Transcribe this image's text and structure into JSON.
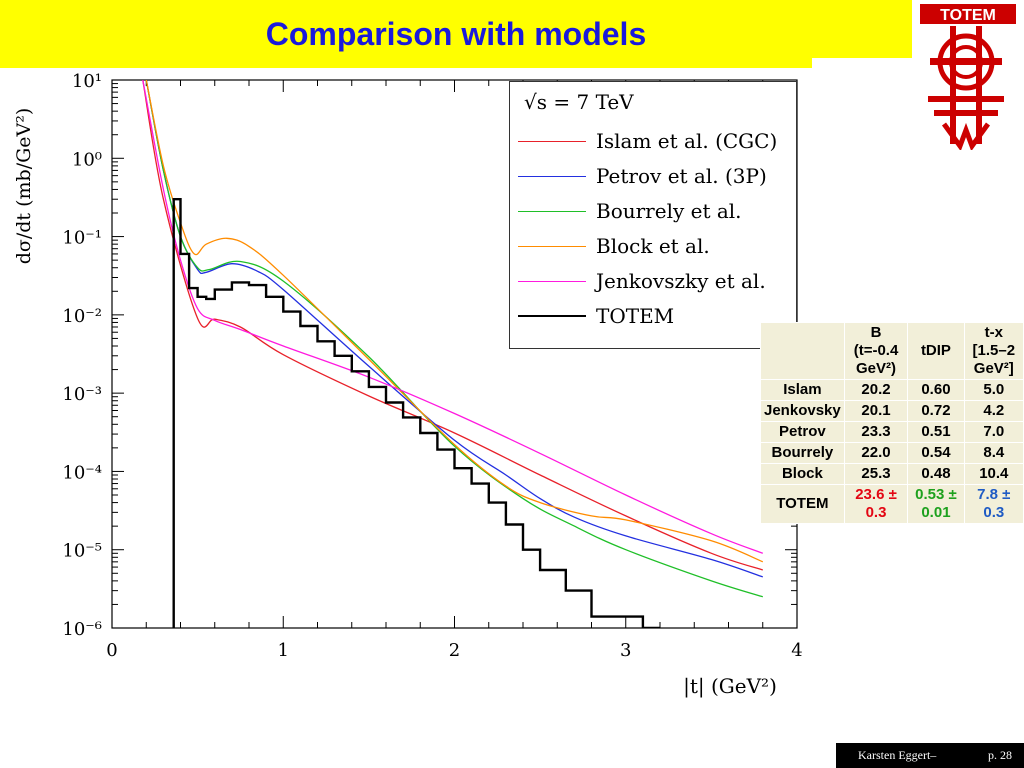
{
  "slide": {
    "title": "Comparison with models",
    "logo_text": "TOTEM",
    "footer_author": "Karsten Eggert–",
    "footer_page": "p. 28"
  },
  "colors": {
    "title_bg": "#ffff00",
    "title_text": "#1a1adb",
    "logo": "#cc0000",
    "islam": "#e8212a",
    "petrov": "#2330e0",
    "bourrely": "#1fbf28",
    "block": "#ff8c00",
    "jenkovszky": "#ff1adf",
    "totem": "#000000",
    "table_bg": "#f2efd9",
    "totem_b": "#e30613",
    "totem_tdip": "#1ea11e",
    "totem_tx": "#1f5bc4"
  },
  "legend": {
    "energy": "√s = 7 TeV"
  },
  "chart_data": {
    "type": "line",
    "xlabel": "|t|  (GeV²)",
    "ylabel": "dσ/dt  (mb/GeV²)",
    "xlim": [
      0,
      4
    ],
    "ylim": [
      1e-06,
      10
    ],
    "yscale": "log",
    "x_ticks": [
      "0",
      "1",
      "2",
      "3",
      "4"
    ],
    "y_ticks": [
      "10¹",
      "10⁰",
      "10⁻¹",
      "10⁻²",
      "10⁻³",
      "10⁻⁴",
      "10⁻⁵",
      "10⁻⁶"
    ],
    "series": [
      {
        "name": "Islam et al.  (CGC)",
        "color_key": "islam",
        "style": "line",
        "points": [
          [
            0.18,
            10
          ],
          [
            0.3,
            0.3
          ],
          [
            0.5,
            0.009
          ],
          [
            0.6,
            0.0088
          ],
          [
            0.75,
            0.007
          ],
          [
            1.0,
            0.0031
          ],
          [
            1.5,
            0.00092
          ],
          [
            2.0,
            0.00031
          ],
          [
            2.5,
            9e-05
          ],
          [
            3.0,
            2.7e-05
          ],
          [
            3.5,
            9e-06
          ],
          [
            3.8,
            5.5e-06
          ]
        ]
      },
      {
        "name": "Petrov et al.  (3P)",
        "color_key": "petrov",
        "style": "line",
        "points": [
          [
            0.2,
            10
          ],
          [
            0.3,
            0.7
          ],
          [
            0.4,
            0.1
          ],
          [
            0.5,
            0.038
          ],
          [
            0.55,
            0.035
          ],
          [
            0.7,
            0.045
          ],
          [
            0.85,
            0.036
          ],
          [
            1.0,
            0.021
          ],
          [
            1.5,
            0.0022
          ],
          [
            2.0,
            0.00025
          ],
          [
            2.3,
            9e-05
          ],
          [
            2.5,
            4.5e-05
          ],
          [
            2.7,
            2.6e-05
          ],
          [
            3.0,
            1.5e-05
          ],
          [
            3.5,
            7.5e-06
          ],
          [
            3.8,
            4.5e-06
          ]
        ]
      },
      {
        "name": "Bourrely et al.",
        "color_key": "bourrely",
        "style": "line",
        "points": [
          [
            0.2,
            10
          ],
          [
            0.3,
            0.7
          ],
          [
            0.4,
            0.1
          ],
          [
            0.5,
            0.04
          ],
          [
            0.57,
            0.038
          ],
          [
            0.75,
            0.048
          ],
          [
            1.0,
            0.027
          ],
          [
            1.5,
            0.0029
          ],
          [
            2.0,
            0.00021
          ],
          [
            2.4,
            4.5e-05
          ],
          [
            2.7,
            2e-05
          ],
          [
            3.0,
            1e-05
          ],
          [
            3.5,
            4e-06
          ],
          [
            3.8,
            2.5e-06
          ]
        ]
      },
      {
        "name": "Block et al.",
        "color_key": "block",
        "style": "line",
        "points": [
          [
            0.2,
            10
          ],
          [
            0.3,
            0.8
          ],
          [
            0.4,
            0.15
          ],
          [
            0.48,
            0.06
          ],
          [
            0.55,
            0.08
          ],
          [
            0.67,
            0.095
          ],
          [
            0.8,
            0.075
          ],
          [
            1.0,
            0.032
          ],
          [
            1.5,
            0.0027
          ],
          [
            2.0,
            0.00022
          ],
          [
            2.3,
            6.5e-05
          ],
          [
            2.5,
            4e-05
          ],
          [
            2.8,
            2.7e-05
          ],
          [
            3.0,
            2.4e-05
          ],
          [
            3.5,
            1.3e-05
          ],
          [
            3.8,
            7e-06
          ]
        ]
      },
      {
        "name": "Jenkovszky et al.",
        "color_key": "jenkovszky",
        "style": "line",
        "points": [
          [
            0.18,
            10
          ],
          [
            0.3,
            0.4
          ],
          [
            0.4,
            0.05
          ],
          [
            0.5,
            0.012
          ],
          [
            0.6,
            0.0085
          ],
          [
            0.75,
            0.0065
          ],
          [
            1.0,
            0.004
          ],
          [
            1.5,
            0.0016
          ],
          [
            2.0,
            0.00055
          ],
          [
            2.5,
            0.00017
          ],
          [
            3.0,
            5e-05
          ],
          [
            3.5,
            1.6e-05
          ],
          [
            3.8,
            9e-06
          ]
        ]
      },
      {
        "name": "TOTEM",
        "color_key": "totem",
        "style": "step",
        "points": [
          [
            0.36,
            0.3
          ],
          [
            0.4,
            0.06
          ],
          [
            0.45,
            0.022
          ],
          [
            0.5,
            0.017
          ],
          [
            0.55,
            0.016
          ],
          [
            0.6,
            0.021
          ],
          [
            0.7,
            0.026
          ],
          [
            0.8,
            0.024
          ],
          [
            0.9,
            0.017
          ],
          [
            1.0,
            0.011
          ],
          [
            1.1,
            0.0072
          ],
          [
            1.2,
            0.0046
          ],
          [
            1.3,
            0.003
          ],
          [
            1.4,
            0.0019
          ],
          [
            1.5,
            0.0012
          ],
          [
            1.6,
            0.00076
          ],
          [
            1.7,
            0.00049
          ],
          [
            1.8,
            0.00031
          ],
          [
            1.9,
            0.00019
          ],
          [
            2.0,
            0.00011
          ],
          [
            2.1,
            7e-05
          ],
          [
            2.2,
            4e-05
          ],
          [
            2.3,
            2.1e-05
          ],
          [
            2.4,
            1e-05
          ],
          [
            2.5,
            5.5e-06
          ],
          [
            2.65,
            3e-06
          ],
          [
            2.8,
            1.4e-06
          ],
          [
            3.1,
            1e-06
          ]
        ]
      }
    ]
  },
  "table": {
    "header": [
      "",
      "B (t=-0.4 GeV²)",
      "tDIP",
      "t-x [1.5–2 GeV²]"
    ],
    "rows": [
      [
        "Islam",
        "20.2",
        "0.60",
        "5.0"
      ],
      [
        "Jenkovsky",
        "20.1",
        "0.72",
        "4.2"
      ],
      [
        "Petrov",
        "23.3",
        "0.51",
        "7.0"
      ],
      [
        "Bourrely",
        "22.0",
        "0.54",
        "8.4"
      ],
      [
        "Block",
        "25.3",
        "0.48",
        "10.4"
      ],
      [
        "TOTEM",
        "23.6 ± 0.3",
        "0.53 ± 0.01",
        "7.8 ± 0.3"
      ]
    ]
  }
}
